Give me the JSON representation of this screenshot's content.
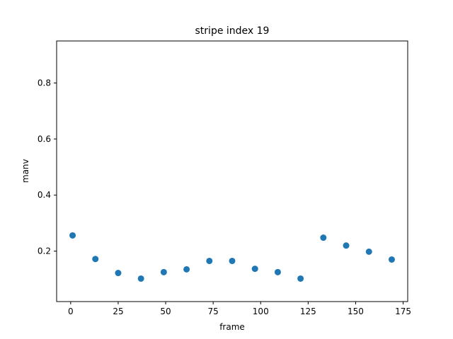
{
  "chart_data": {
    "type": "scatter",
    "title": "stripe index 19",
    "xlabel": "frame",
    "ylabel": "manv",
    "xlim": [
      -7.4,
      177.4
    ],
    "ylim": [
      0.02,
      0.95
    ],
    "xticks": [
      0,
      25,
      50,
      75,
      100,
      125,
      150,
      175
    ],
    "yticks": [
      0.2,
      0.4,
      0.6,
      0.8
    ],
    "ytick_labels": [
      "0.2",
      "0.4",
      "0.6",
      "0.8"
    ],
    "grid": false,
    "marker_color": "#1f77b4",
    "x": [
      1,
      13,
      25,
      37,
      49,
      61,
      73,
      85,
      97,
      109,
      121,
      133,
      145,
      157,
      169
    ],
    "y": [
      0.256,
      0.172,
      0.122,
      0.102,
      0.125,
      0.135,
      0.165,
      0.165,
      0.137,
      0.125,
      0.102,
      0.248,
      0.22,
      0.198,
      0.17
    ]
  }
}
